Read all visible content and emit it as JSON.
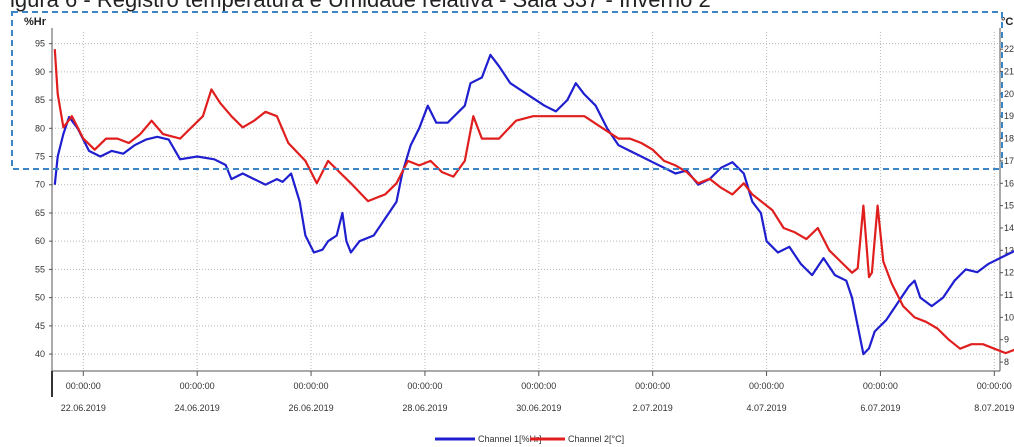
{
  "caption": "igura 6 - Registro temperatura e Umidade relativa - Sala 337 - Inverno 2",
  "chart_data": {
    "type": "line",
    "y_left_unit": "%Hr",
    "y_right_unit": "°C",
    "ylim_left": [
      37,
      96
    ],
    "ylim_right": [
      7.6,
      22.5
    ],
    "yticks_left": [
      40,
      45,
      50,
      55,
      60,
      65,
      70,
      75,
      80,
      85,
      90,
      95
    ],
    "yticks_right": [
      8,
      9,
      10,
      11,
      12,
      13,
      14,
      15,
      16,
      17,
      18,
      19,
      20,
      21,
      22
    ],
    "xlim": [
      -0.05,
      16.6
    ],
    "x_ticks": [
      {
        "x": 0.5,
        "time": "00:00:00",
        "date": "22.06.2019"
      },
      {
        "x": 2.5,
        "time": "00:00:00",
        "date": "24.06.2019"
      },
      {
        "x": 4.5,
        "time": "00:00:00",
        "date": "26.06.2019"
      },
      {
        "x": 6.5,
        "time": "00:00:00",
        "date": "28.06.2019"
      },
      {
        "x": 8.5,
        "time": "00:00:00",
        "date": "30.06.2019"
      },
      {
        "x": 10.5,
        "time": "00:00:00",
        "date": "2.07.2019"
      },
      {
        "x": 12.5,
        "time": "00:00:00",
        "date": "4.07.2019"
      },
      {
        "x": 14.5,
        "time": "00:00:00",
        "date": "6.07.2019"
      },
      {
        "x": 16.5,
        "time": "00:00:00",
        "date": "8.07.2019"
      }
    ],
    "grid": true,
    "legend_position": "bottom-center",
    "series": [
      {
        "name": "Channel 1[%Hr]",
        "axis": "left",
        "color": "#1f1fd0",
        "points": [
          [
            0.0,
            70
          ],
          [
            0.05,
            75
          ],
          [
            0.15,
            79
          ],
          [
            0.25,
            82
          ],
          [
            0.4,
            80
          ],
          [
            0.6,
            76
          ],
          [
            0.8,
            75
          ],
          [
            1.0,
            76
          ],
          [
            1.2,
            75.5
          ],
          [
            1.4,
            77
          ],
          [
            1.6,
            78
          ],
          [
            1.8,
            78.5
          ],
          [
            2.0,
            78
          ],
          [
            2.2,
            74.5
          ],
          [
            2.5,
            75
          ],
          [
            2.8,
            74.5
          ],
          [
            3.0,
            73.5
          ],
          [
            3.1,
            71
          ],
          [
            3.3,
            72
          ],
          [
            3.5,
            71
          ],
          [
            3.7,
            70
          ],
          [
            3.9,
            71
          ],
          [
            4.0,
            70.5
          ],
          [
            4.15,
            72
          ],
          [
            4.3,
            67
          ],
          [
            4.4,
            61
          ],
          [
            4.55,
            58
          ],
          [
            4.7,
            58.5
          ],
          [
            4.8,
            60
          ],
          [
            4.95,
            61
          ],
          [
            5.05,
            65
          ],
          [
            5.12,
            60
          ],
          [
            5.2,
            58
          ],
          [
            5.35,
            60
          ],
          [
            5.6,
            61
          ],
          [
            5.8,
            64
          ],
          [
            6.0,
            67
          ],
          [
            6.1,
            72
          ],
          [
            6.25,
            77
          ],
          [
            6.4,
            80
          ],
          [
            6.55,
            84
          ],
          [
            6.7,
            81
          ],
          [
            6.9,
            81
          ],
          [
            7.0,
            82
          ],
          [
            7.2,
            84
          ],
          [
            7.3,
            88
          ],
          [
            7.5,
            89
          ],
          [
            7.65,
            93
          ],
          [
            7.8,
            91
          ],
          [
            8.0,
            88
          ],
          [
            8.3,
            86
          ],
          [
            8.6,
            84
          ],
          [
            8.8,
            83
          ],
          [
            9.0,
            85
          ],
          [
            9.15,
            88
          ],
          [
            9.3,
            86
          ],
          [
            9.5,
            84
          ],
          [
            9.7,
            80
          ],
          [
            9.9,
            77
          ],
          [
            10.1,
            76
          ],
          [
            10.3,
            75
          ],
          [
            10.5,
            74
          ],
          [
            10.7,
            73
          ],
          [
            10.9,
            72
          ],
          [
            11.1,
            72.5
          ],
          [
            11.3,
            70
          ],
          [
            11.5,
            71
          ],
          [
            11.7,
            73
          ],
          [
            11.9,
            74
          ],
          [
            12.1,
            72
          ],
          [
            12.25,
            67
          ],
          [
            12.4,
            65
          ],
          [
            12.5,
            60
          ],
          [
            12.7,
            58
          ],
          [
            12.9,
            59
          ],
          [
            13.1,
            56
          ],
          [
            13.3,
            54
          ],
          [
            13.5,
            57
          ],
          [
            13.7,
            54
          ],
          [
            13.9,
            53
          ],
          [
            14.0,
            50
          ],
          [
            14.1,
            45
          ],
          [
            14.2,
            40
          ],
          [
            14.3,
            41
          ],
          [
            14.4,
            44
          ],
          [
            14.6,
            46
          ],
          [
            14.8,
            49
          ],
          [
            15.0,
            52
          ],
          [
            15.1,
            53
          ],
          [
            15.2,
            50
          ],
          [
            15.4,
            48.5
          ],
          [
            15.6,
            50
          ],
          [
            15.8,
            53
          ],
          [
            16.0,
            55
          ],
          [
            16.2,
            54.5
          ],
          [
            16.4,
            56
          ],
          [
            16.6,
            57
          ],
          [
            16.8,
            58
          ],
          [
            17.0,
            59
          ],
          [
            17.15,
            58
          ]
        ]
      },
      {
        "name": "Channel 2[°C]",
        "axis": "right",
        "color": "#e01e1e",
        "points": [
          [
            0.0,
            22
          ],
          [
            0.05,
            20
          ],
          [
            0.15,
            18.5
          ],
          [
            0.3,
            19
          ],
          [
            0.5,
            18
          ],
          [
            0.7,
            17.5
          ],
          [
            0.9,
            18
          ],
          [
            1.1,
            18
          ],
          [
            1.3,
            17.8
          ],
          [
            1.5,
            18.2
          ],
          [
            1.7,
            18.8
          ],
          [
            1.9,
            18.2
          ],
          [
            2.2,
            18
          ],
          [
            2.4,
            18.5
          ],
          [
            2.6,
            19
          ],
          [
            2.75,
            20.2
          ],
          [
            2.9,
            19.6
          ],
          [
            3.1,
            19
          ],
          [
            3.3,
            18.5
          ],
          [
            3.5,
            18.8
          ],
          [
            3.7,
            19.2
          ],
          [
            3.9,
            19
          ],
          [
            4.1,
            17.8
          ],
          [
            4.4,
            17
          ],
          [
            4.6,
            16
          ],
          [
            4.8,
            17
          ],
          [
            5.0,
            16.5
          ],
          [
            5.2,
            16
          ],
          [
            5.5,
            15.2
          ],
          [
            5.8,
            15.5
          ],
          [
            6.0,
            16
          ],
          [
            6.2,
            17
          ],
          [
            6.4,
            16.8
          ],
          [
            6.6,
            17
          ],
          [
            6.8,
            16.5
          ],
          [
            7.0,
            16.3
          ],
          [
            7.2,
            17
          ],
          [
            7.35,
            19
          ],
          [
            7.5,
            18
          ],
          [
            7.8,
            18
          ],
          [
            8.1,
            18.8
          ],
          [
            8.4,
            19
          ],
          [
            8.7,
            19
          ],
          [
            9.0,
            19
          ],
          [
            9.3,
            19
          ],
          [
            9.6,
            18.5
          ],
          [
            9.9,
            18
          ],
          [
            10.1,
            18
          ],
          [
            10.3,
            17.8
          ],
          [
            10.5,
            17.5
          ],
          [
            10.7,
            17
          ],
          [
            10.9,
            16.8
          ],
          [
            11.1,
            16.5
          ],
          [
            11.3,
            16
          ],
          [
            11.5,
            16.2
          ],
          [
            11.7,
            15.8
          ],
          [
            11.9,
            15.5
          ],
          [
            12.1,
            16
          ],
          [
            12.25,
            15.5
          ],
          [
            12.4,
            15.2
          ],
          [
            12.6,
            14.8
          ],
          [
            12.8,
            14
          ],
          [
            13.0,
            13.8
          ],
          [
            13.2,
            13.5
          ],
          [
            13.4,
            14
          ],
          [
            13.6,
            13
          ],
          [
            13.8,
            12.5
          ],
          [
            14.0,
            12
          ],
          [
            14.1,
            12.2
          ],
          [
            14.2,
            15
          ],
          [
            14.3,
            11.8
          ],
          [
            14.35,
            12
          ],
          [
            14.45,
            15
          ],
          [
            14.55,
            12.5
          ],
          [
            14.7,
            11.5
          ],
          [
            14.9,
            10.5
          ],
          [
            15.1,
            10
          ],
          [
            15.3,
            9.8
          ],
          [
            15.5,
            9.5
          ],
          [
            15.7,
            9
          ],
          [
            15.9,
            8.6
          ],
          [
            16.1,
            8.8
          ],
          [
            16.3,
            8.8
          ],
          [
            16.5,
            8.6
          ],
          [
            16.7,
            8.4
          ],
          [
            16.9,
            8.6
          ],
          [
            17.05,
            9
          ],
          [
            17.15,
            9.2
          ]
        ]
      }
    ]
  }
}
